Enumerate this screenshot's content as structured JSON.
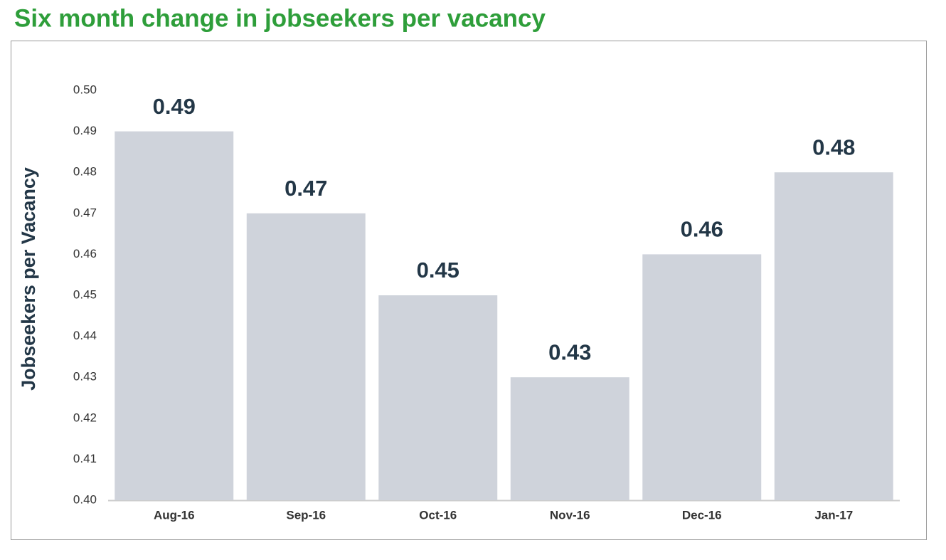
{
  "chart_data": {
    "type": "bar",
    "title": "Six month change in jobseekers per vacancy",
    "y_label": "Jobseekers per Vacancy",
    "categories": [
      "Aug-16",
      "Sep-16",
      "Oct-16",
      "Nov-16",
      "Dec-16",
      "Jan-17"
    ],
    "values": [
      0.49,
      0.47,
      0.45,
      0.43,
      0.46,
      0.48
    ],
    "color": "#cfd3db",
    "ylim": [
      0.4,
      0.5
    ],
    "yticks": [
      {
        "value": 0.4,
        "label": "0.40"
      },
      0.41,
      0.42,
      0.43,
      0.44,
      0.45,
      0.46,
      0.47,
      0.48,
      0.49,
      {
        "value": 0.5,
        "label": "0.50"
      }
    ],
    "grid": false
  }
}
